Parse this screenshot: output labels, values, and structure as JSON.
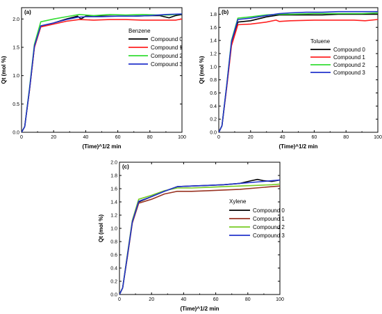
{
  "chart_data": [
    {
      "type": "line",
      "panel_label": "(a)",
      "title": "",
      "xlabel": "(Time)^1/2 min",
      "ylabel": "Qt (mol %)",
      "xlim": [
        0,
        100
      ],
      "ylim": [
        0,
        2.2
      ],
      "x_ticks": [
        "0",
        "20",
        "40",
        "60",
        "80",
        "100"
      ],
      "y_ticks": [
        "0.0",
        "0.5",
        "1.0",
        "1.5",
        "2.0"
      ],
      "y_tick_values": [
        0,
        0.5,
        1.0,
        1.5,
        2.0
      ],
      "legend_title": "Benzene",
      "legend_position": "right",
      "series": [
        {
          "name": "Compound 0",
          "color": "#000000",
          "points": [
            [
              0,
              0
            ],
            [
              2,
              0.1
            ],
            [
              5,
              0.75
            ],
            [
              8,
              1.5
            ],
            [
              12,
              1.87
            ],
            [
              20,
              1.93
            ],
            [
              28,
              2.0
            ],
            [
              35,
              2.05
            ],
            [
              37,
              2.0
            ],
            [
              40,
              2.05
            ],
            [
              50,
              2.05
            ],
            [
              60,
              2.05
            ],
            [
              70,
              2.05
            ],
            [
              80,
              2.06
            ],
            [
              86,
              2.06
            ],
            [
              92,
              2.02
            ],
            [
              96,
              2.06
            ],
            [
              100,
              2.08
            ]
          ]
        },
        {
          "name": "Compound 1",
          "color": "#ff2020",
          "points": [
            [
              0,
              0
            ],
            [
              2,
              0.1
            ],
            [
              5,
              0.75
            ],
            [
              8,
              1.5
            ],
            [
              12,
              1.86
            ],
            [
              20,
              1.91
            ],
            [
              28,
              1.96
            ],
            [
              36,
              1.99
            ],
            [
              45,
              1.98
            ],
            [
              55,
              1.99
            ],
            [
              65,
              1.99
            ],
            [
              75,
              1.98
            ],
            [
              80,
              1.98
            ],
            [
              86,
              1.98
            ],
            [
              92,
              1.98
            ],
            [
              96,
              1.98
            ],
            [
              100,
              2.0
            ]
          ]
        },
        {
          "name": "Compound 2",
          "color": "#33dd33",
          "points": [
            [
              0,
              0
            ],
            [
              2,
              0.1
            ],
            [
              5,
              0.78
            ],
            [
              8,
              1.55
            ],
            [
              12,
              1.95
            ],
            [
              20,
              2.0
            ],
            [
              28,
              2.04
            ],
            [
              36,
              2.08
            ],
            [
              45,
              2.06
            ],
            [
              55,
              2.08
            ],
            [
              65,
              2.07
            ],
            [
              75,
              2.08
            ],
            [
              85,
              2.07
            ],
            [
              92,
              2.07
            ],
            [
              100,
              2.09
            ]
          ]
        },
        {
          "name": "Compound 3",
          "color": "#2233cc",
          "points": [
            [
              0,
              0
            ],
            [
              2,
              0.1
            ],
            [
              5,
              0.76
            ],
            [
              8,
              1.52
            ],
            [
              12,
              1.88
            ],
            [
              20,
              1.93
            ],
            [
              28,
              1.99
            ],
            [
              35,
              2.03
            ],
            [
              40,
              2.04
            ],
            [
              50,
              2.04
            ],
            [
              60,
              2.05
            ],
            [
              70,
              2.05
            ],
            [
              80,
              2.06
            ],
            [
              90,
              2.08
            ],
            [
              100,
              2.09
            ]
          ]
        }
      ]
    },
    {
      "type": "line",
      "panel_label": "(b)",
      "title": "",
      "xlabel": "(Time)^1/2 min",
      "ylabel": "Qt (mol %)",
      "xlim": [
        0,
        100
      ],
      "ylim": [
        0,
        1.9
      ],
      "x_ticks": [
        "0",
        "20",
        "40",
        "60",
        "80",
        "100"
      ],
      "y_ticks": [
        "0.0",
        "0.2",
        "0.4",
        "0.6",
        "0.8",
        "1.0",
        "1.2",
        "1.4",
        "1.6",
        "1.8"
      ],
      "y_tick_values": [
        0,
        0.2,
        0.4,
        0.6,
        0.8,
        1.0,
        1.2,
        1.4,
        1.6,
        1.8
      ],
      "legend_title": "Toluene",
      "legend_position": "right",
      "series": [
        {
          "name": "Compound 0",
          "color": "#000000",
          "points": [
            [
              0,
              0
            ],
            [
              2,
              0.1
            ],
            [
              5,
              0.7
            ],
            [
              8,
              1.35
            ],
            [
              12,
              1.68
            ],
            [
              20,
              1.7
            ],
            [
              30,
              1.76
            ],
            [
              38,
              1.79
            ],
            [
              45,
              1.79
            ],
            [
              55,
              1.79
            ],
            [
              65,
              1.79
            ],
            [
              75,
              1.8
            ],
            [
              85,
              1.8
            ],
            [
              95,
              1.8
            ],
            [
              100,
              1.8
            ]
          ]
        },
        {
          "name": "Compound 1",
          "color": "#ff2020",
          "points": [
            [
              0,
              0
            ],
            [
              2,
              0.1
            ],
            [
              5,
              0.68
            ],
            [
              8,
              1.32
            ],
            [
              12,
              1.64
            ],
            [
              20,
              1.65
            ],
            [
              30,
              1.68
            ],
            [
              36,
              1.71
            ],
            [
              38,
              1.69
            ],
            [
              45,
              1.7
            ],
            [
              60,
              1.71
            ],
            [
              75,
              1.71
            ],
            [
              85,
              1.71
            ],
            [
              92,
              1.7
            ],
            [
              100,
              1.72
            ]
          ]
        },
        {
          "name": "Compound 2",
          "color": "#33dd33",
          "points": [
            [
              0,
              0
            ],
            [
              2,
              0.1
            ],
            [
              5,
              0.72
            ],
            [
              8,
              1.4
            ],
            [
              12,
              1.74
            ],
            [
              20,
              1.76
            ],
            [
              30,
              1.79
            ],
            [
              38,
              1.8
            ],
            [
              45,
              1.8
            ],
            [
              60,
              1.81
            ],
            [
              75,
              1.81
            ],
            [
              90,
              1.81
            ],
            [
              100,
              1.82
            ]
          ]
        },
        {
          "name": "Compound 3",
          "color": "#2233cc",
          "points": [
            [
              0,
              0
            ],
            [
              2,
              0.1
            ],
            [
              5,
              0.71
            ],
            [
              8,
              1.38
            ],
            [
              12,
              1.72
            ],
            [
              20,
              1.74
            ],
            [
              30,
              1.78
            ],
            [
              38,
              1.81
            ],
            [
              45,
              1.82
            ],
            [
              55,
              1.83
            ],
            [
              65,
              1.83
            ],
            [
              75,
              1.84
            ],
            [
              85,
              1.84
            ],
            [
              100,
              1.84
            ]
          ]
        }
      ]
    },
    {
      "type": "line",
      "panel_label": "(c)",
      "title": "",
      "xlabel": "(Time)^1/2 min",
      "ylabel": "Qt (mol %)",
      "xlim": [
        0,
        100
      ],
      "ylim": [
        0,
        2.0
      ],
      "x_ticks": [
        "0",
        "20",
        "40",
        "60",
        "80",
        "100"
      ],
      "y_ticks": [
        "0.0",
        "0.2",
        "0.4",
        "0.6",
        "0.8",
        "1.0",
        "1.2",
        "1.4",
        "1.6",
        "1.8",
        "2.0"
      ],
      "y_tick_values": [
        0,
        0.2,
        0.4,
        0.6,
        0.8,
        1.0,
        1.2,
        1.4,
        1.6,
        1.8,
        2.0
      ],
      "legend_title": "Xylene",
      "legend_position": "right",
      "series": [
        {
          "name": "Compound 0",
          "color": "#000000",
          "points": [
            [
              0,
              0
            ],
            [
              2,
              0.1
            ],
            [
              5,
              0.6
            ],
            [
              8,
              1.1
            ],
            [
              12,
              1.4
            ],
            [
              20,
              1.48
            ],
            [
              28,
              1.56
            ],
            [
              36,
              1.63
            ],
            [
              45,
              1.64
            ],
            [
              55,
              1.65
            ],
            [
              65,
              1.66
            ],
            [
              75,
              1.68
            ],
            [
              82,
              1.72
            ],
            [
              86,
              1.74
            ],
            [
              90,
              1.72
            ],
            [
              95,
              1.71
            ],
            [
              100,
              1.73
            ]
          ]
        },
        {
          "name": "Compound 1",
          "color": "#993322",
          "points": [
            [
              0,
              0
            ],
            [
              2,
              0.1
            ],
            [
              5,
              0.58
            ],
            [
              8,
              1.08
            ],
            [
              12,
              1.38
            ],
            [
              20,
              1.44
            ],
            [
              28,
              1.52
            ],
            [
              36,
              1.56
            ],
            [
              45,
              1.56
            ],
            [
              55,
              1.57
            ],
            [
              65,
              1.58
            ],
            [
              75,
              1.59
            ],
            [
              85,
              1.61
            ],
            [
              95,
              1.63
            ],
            [
              100,
              1.64
            ]
          ]
        },
        {
          "name": "Compound 2",
          "color": "#77cc22",
          "points": [
            [
              0,
              0
            ],
            [
              2,
              0.1
            ],
            [
              5,
              0.62
            ],
            [
              8,
              1.12
            ],
            [
              12,
              1.44
            ],
            [
              20,
              1.5
            ],
            [
              28,
              1.57
            ],
            [
              36,
              1.61
            ],
            [
              45,
              1.61
            ],
            [
              55,
              1.62
            ],
            [
              65,
              1.63
            ],
            [
              75,
              1.64
            ],
            [
              85,
              1.65
            ],
            [
              95,
              1.66
            ],
            [
              100,
              1.67
            ]
          ]
        },
        {
          "name": "Compound 3",
          "color": "#2233cc",
          "points": [
            [
              0,
              0
            ],
            [
              2,
              0.1
            ],
            [
              5,
              0.6
            ],
            [
              8,
              1.1
            ],
            [
              12,
              1.41
            ],
            [
              20,
              1.48
            ],
            [
              28,
              1.56
            ],
            [
              36,
              1.63
            ],
            [
              45,
              1.64
            ],
            [
              55,
              1.65
            ],
            [
              65,
              1.66
            ],
            [
              75,
              1.68
            ],
            [
              85,
              1.7
            ],
            [
              95,
              1.72
            ],
            [
              100,
              1.73
            ]
          ]
        }
      ]
    }
  ]
}
